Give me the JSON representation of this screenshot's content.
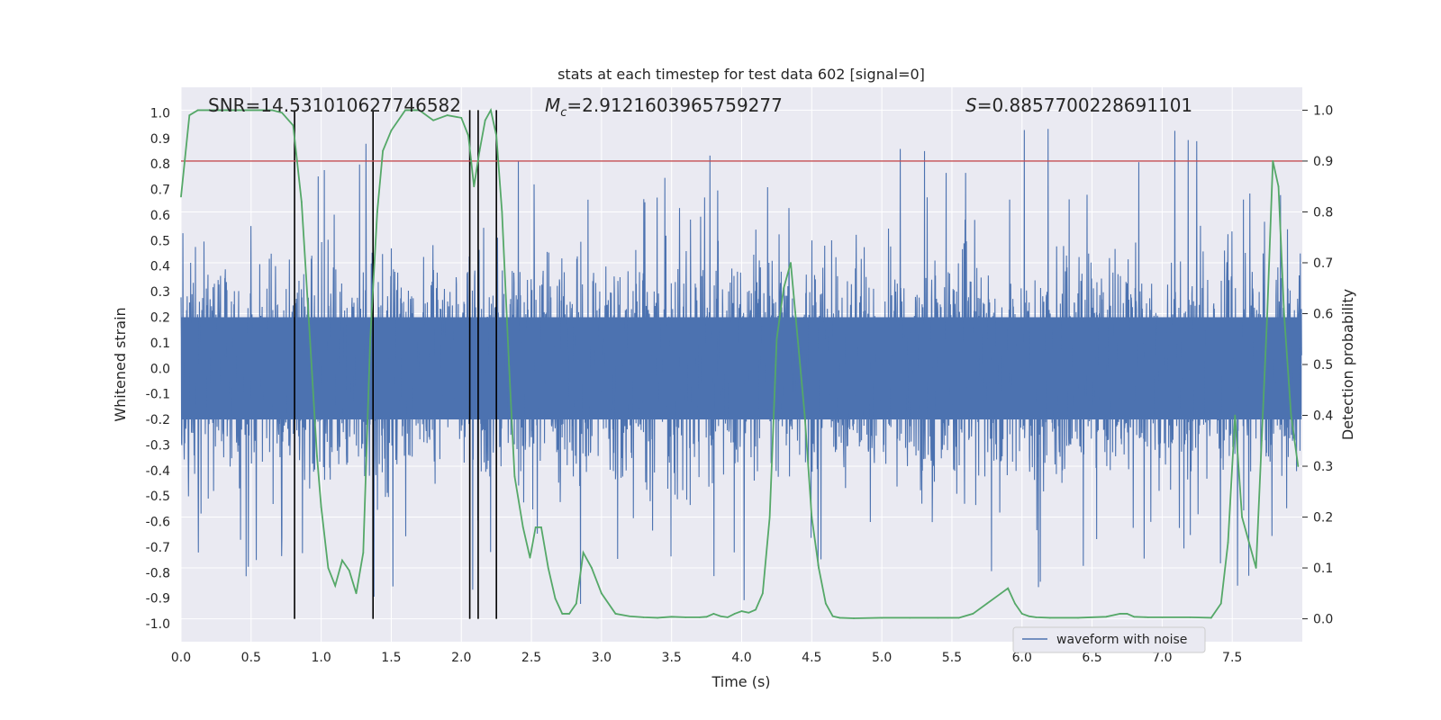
{
  "chart_data": {
    "type": "line",
    "title": "stats at each timestep for test data 602 [signal=0]",
    "xlabel": "Time (s)",
    "ylabel": "Whitened strain",
    "ylabel_right": "Detection probability",
    "xlim": [
      0.0,
      8.0
    ],
    "ylim": [
      -1.07,
      1.1
    ],
    "ylim_right": [
      -0.045,
      1.045
    ],
    "xticks": [
      0.0,
      0.5,
      1.0,
      1.5,
      2.0,
      2.5,
      3.0,
      3.5,
      4.0,
      4.5,
      5.0,
      5.5,
      6.0,
      6.5,
      7.0,
      7.5
    ],
    "xtick_labels": [
      "0.0",
      "0.5",
      "1.0",
      "1.5",
      "2.0",
      "2.5",
      "3.0",
      "3.5",
      "4.0",
      "4.5",
      "5.0",
      "5.5",
      "6.0",
      "6.5",
      "7.0",
      "7.5"
    ],
    "yticks": [
      1.0,
      0.9,
      0.8,
      0.7,
      0.6,
      0.5,
      0.4,
      0.3,
      0.2,
      0.1,
      0.0,
      -0.1,
      -0.2,
      -0.3,
      -0.4,
      -0.5,
      -0.6,
      -0.7,
      -0.8,
      -0.9,
      -1.0
    ],
    "ytick_labels": [
      "1.0",
      "0.9",
      "0.8",
      "0.7",
      "0.6",
      "0.5",
      "0.4",
      "0.3",
      "0.2",
      "0.1",
      "0.0",
      "-0.1",
      "-0.2",
      "-0.3",
      "-0.4",
      "-0.5",
      "-0.6",
      "-0.7",
      "-0.8",
      "-0.9",
      "-1.0"
    ],
    "yticks_right": [
      1.0,
      0.9,
      0.8,
      0.7,
      0.6,
      0.5,
      0.4,
      0.3,
      0.2,
      0.1,
      0.0
    ],
    "ytick_labels_right": [
      "1.0",
      "0.9",
      "0.8",
      "0.7",
      "0.6",
      "0.5",
      "0.4",
      "0.3",
      "0.2",
      "0.1",
      "0.0"
    ],
    "stats": {
      "snr": "SNR=14.531010627746582",
      "mc_prefix": "M",
      "mc_sub": "c",
      "mc_value": "=2.9121603965759277",
      "s_prefix": "S",
      "s_value": "=0.8857700228691101"
    },
    "threshold": {
      "value": 0.9,
      "axis": "right",
      "color": "#c44e52"
    },
    "vertical_lines": [
      0.81,
      1.37,
      2.06,
      2.12,
      2.25
    ],
    "vertical_line_range_right": [
      0.0,
      1.0
    ],
    "series": [
      {
        "name": "waveform with noise",
        "axis": "left",
        "color": "#4c72b0",
        "kind": "noise",
        "typical_amplitude": 0.5,
        "peak_amplitude": 1.0
      },
      {
        "name": "detection probability",
        "axis": "right",
        "color": "#55a868",
        "x": [
          0.0,
          0.06,
          0.12,
          0.2,
          0.35,
          0.5,
          0.65,
          0.72,
          0.8,
          0.86,
          0.92,
          0.97,
          1.0,
          1.05,
          1.1,
          1.15,
          1.2,
          1.25,
          1.3,
          1.35,
          1.4,
          1.44,
          1.5,
          1.6,
          1.7,
          1.8,
          1.9,
          2.0,
          2.05,
          2.09,
          2.13,
          2.17,
          2.21,
          2.25,
          2.29,
          2.34,
          2.38,
          2.44,
          2.49,
          2.53,
          2.57,
          2.62,
          2.67,
          2.72,
          2.77,
          2.82,
          2.87,
          2.93,
          3.0,
          3.1,
          3.2,
          3.3,
          3.4,
          3.5,
          3.6,
          3.7,
          3.75,
          3.8,
          3.85,
          3.9,
          3.95,
          4.0,
          4.05,
          4.1,
          4.15,
          4.2,
          4.25,
          4.3,
          4.35,
          4.4,
          4.45,
          4.5,
          4.55,
          4.6,
          4.65,
          4.7,
          4.8,
          5.0,
          5.2,
          5.4,
          5.55,
          5.65,
          5.75,
          5.85,
          5.9,
          5.95,
          6.0,
          6.05,
          6.1,
          6.2,
          6.4,
          6.6,
          6.7,
          6.75,
          6.8,
          6.9,
          7.0,
          7.2,
          7.35,
          7.42,
          7.47,
          7.52,
          7.57,
          7.62,
          7.67,
          7.71,
          7.75,
          7.79,
          7.83,
          7.87,
          7.92,
          7.97
        ],
        "y": [
          0.83,
          0.99,
          1.0,
          1.0,
          1.0,
          1.0,
          1.0,
          0.995,
          0.97,
          0.82,
          0.55,
          0.32,
          0.22,
          0.1,
          0.065,
          0.115,
          0.095,
          0.05,
          0.13,
          0.55,
          0.8,
          0.92,
          0.96,
          1.0,
          1.0,
          0.98,
          0.99,
          0.985,
          0.95,
          0.85,
          0.92,
          0.98,
          1.0,
          0.95,
          0.8,
          0.5,
          0.28,
          0.18,
          0.12,
          0.18,
          0.18,
          0.1,
          0.04,
          0.01,
          0.01,
          0.03,
          0.13,
          0.1,
          0.05,
          0.01,
          0.005,
          0.003,
          0.002,
          0.004,
          0.003,
          0.003,
          0.004,
          0.01,
          0.005,
          0.003,
          0.01,
          0.015,
          0.012,
          0.018,
          0.05,
          0.2,
          0.55,
          0.65,
          0.7,
          0.55,
          0.4,
          0.2,
          0.1,
          0.03,
          0.005,
          0.002,
          0.001,
          0.002,
          0.002,
          0.002,
          0.002,
          0.01,
          0.03,
          0.05,
          0.06,
          0.03,
          0.01,
          0.005,
          0.003,
          0.002,
          0.002,
          0.004,
          0.01,
          0.01,
          0.004,
          0.003,
          0.003,
          0.003,
          0.002,
          0.03,
          0.15,
          0.4,
          0.2,
          0.15,
          0.1,
          0.35,
          0.6,
          0.9,
          0.85,
          0.6,
          0.4,
          0.3
        ]
      }
    ],
    "legend": {
      "placement": "bottom-right",
      "entries": [
        "waveform with noise"
      ]
    }
  }
}
